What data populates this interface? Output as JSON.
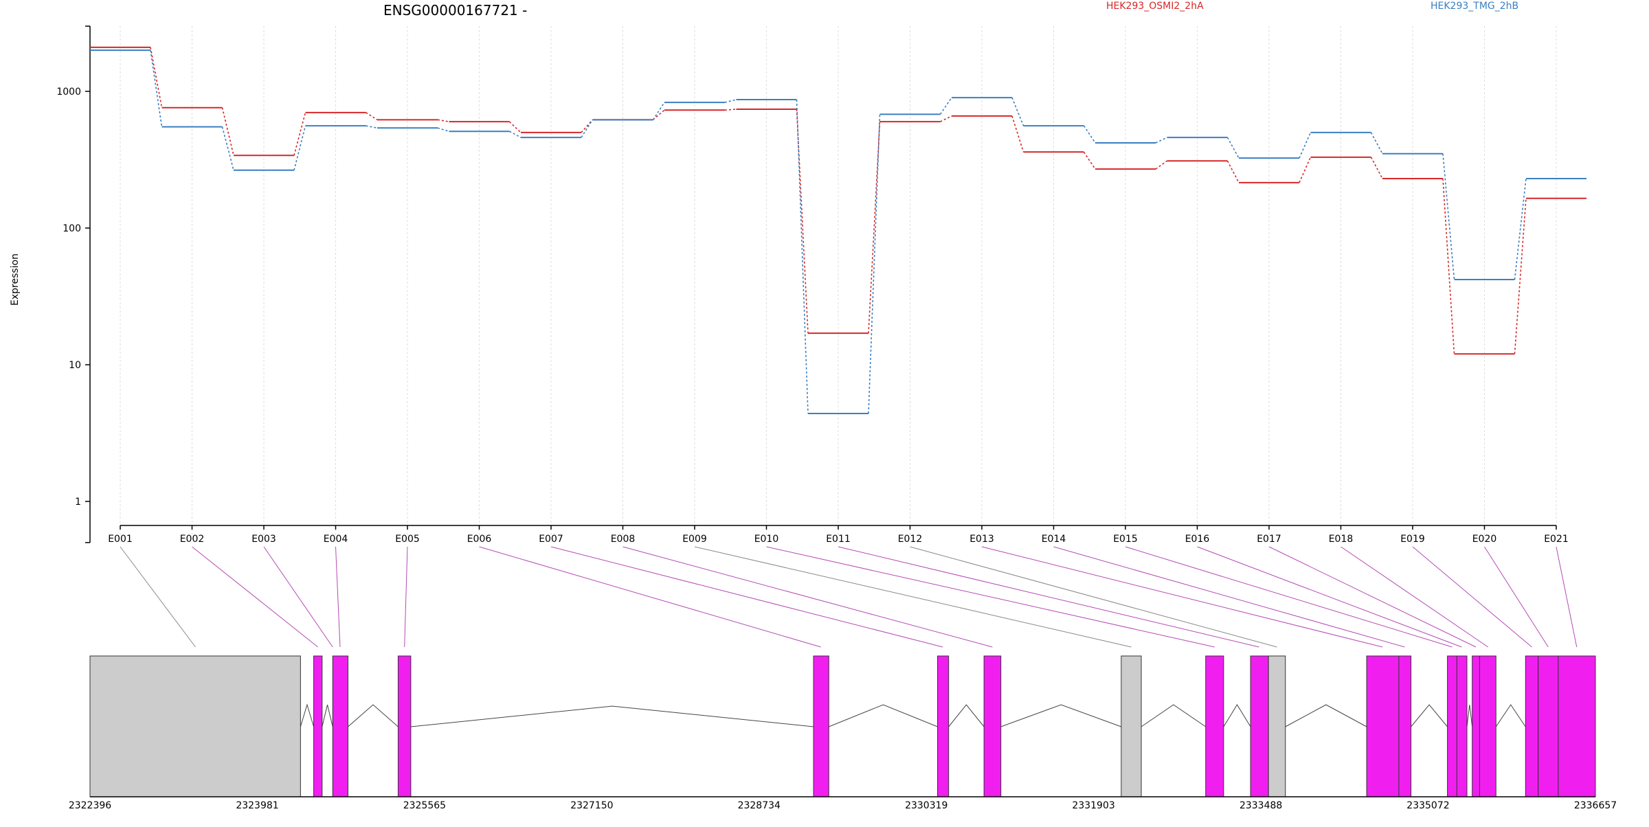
{
  "chart_data": {
    "type": "line",
    "title": "ENSG00000167721 -",
    "ylabel": "Expression",
    "y_scale": "log",
    "yticks": [
      1,
      10,
      100,
      1000
    ],
    "ylim": [
      0.5,
      3000
    ],
    "grid": true,
    "categories": [
      "E001",
      "E002",
      "E003",
      "E004",
      "E005",
      "E006",
      "E007",
      "E008",
      "E009",
      "E010",
      "E011",
      "E012",
      "E013",
      "E014",
      "E015",
      "E016",
      "E017",
      "E018",
      "E019",
      "E020",
      "E021"
    ],
    "series": [
      {
        "name": "HEK293_OSMI2_2hA",
        "color": "#d62728",
        "values": [
          2100,
          760,
          340,
          700,
          620,
          600,
          500,
          620,
          730,
          740,
          17,
          600,
          660,
          360,
          270,
          310,
          215,
          330,
          230,
          12,
          165
        ]
      },
      {
        "name": "HEK293_TMG_2hB",
        "color": "#3a7fc0",
        "values": [
          2000,
          550,
          265,
          560,
          540,
          510,
          460,
          620,
          830,
          870,
          4.4,
          680,
          900,
          560,
          420,
          460,
          325,
          500,
          350,
          42,
          230
        ]
      }
    ],
    "genome_axis": {
      "ticks": [
        2322396,
        2323981,
        2325565,
        2327150,
        2328734,
        2330319,
        2331903,
        2333488,
        2335072,
        2336657
      ],
      "range": [
        2322396,
        2336657
      ]
    },
    "exon_blocks": [
      {
        "start": 2322396,
        "end": 2324390,
        "state": "gray"
      },
      {
        "start": 2324515,
        "end": 2324595,
        "state": "magenta"
      },
      {
        "start": 2324695,
        "end": 2324840,
        "state": "magenta"
      },
      {
        "start": 2325315,
        "end": 2325435,
        "state": "magenta"
      },
      {
        "start": 2329250,
        "end": 2329395,
        "state": "magenta"
      },
      {
        "start": 2330425,
        "end": 2330530,
        "state": "magenta"
      },
      {
        "start": 2330865,
        "end": 2331025,
        "state": "magenta"
      },
      {
        "start": 2332165,
        "end": 2332355,
        "state": "gray"
      },
      {
        "start": 2332965,
        "end": 2333135,
        "state": "magenta"
      },
      {
        "start": 2333390,
        "end": 2333560,
        "state": "magenta"
      },
      {
        "start": 2333560,
        "end": 2333720,
        "state": "gray"
      },
      {
        "start": 2334490,
        "end": 2334795,
        "state": "magenta"
      },
      {
        "start": 2334795,
        "end": 2334910,
        "state": "magenta"
      },
      {
        "start": 2335255,
        "end": 2335345,
        "state": "magenta"
      },
      {
        "start": 2335345,
        "end": 2335440,
        "state": "magenta"
      },
      {
        "start": 2335490,
        "end": 2335560,
        "state": "magenta"
      },
      {
        "start": 2335560,
        "end": 2335715,
        "state": "magenta"
      },
      {
        "start": 2335995,
        "end": 2336115,
        "state": "magenta"
      },
      {
        "start": 2336115,
        "end": 2336305,
        "state": "magenta"
      },
      {
        "start": 2336305,
        "end": 2336657,
        "state": "magenta"
      }
    ],
    "exon_links": [
      {
        "exon": "E001",
        "pos": 2323395,
        "state": "gray"
      },
      {
        "exon": "E002",
        "pos": 2324555,
        "state": "magenta"
      },
      {
        "exon": "E003",
        "pos": 2324695,
        "state": "magenta"
      },
      {
        "exon": "E004",
        "pos": 2324765,
        "state": "magenta"
      },
      {
        "exon": "E005",
        "pos": 2325375,
        "state": "magenta"
      },
      {
        "exon": "E006",
        "pos": 2329320,
        "state": "magenta"
      },
      {
        "exon": "E007",
        "pos": 2330475,
        "state": "magenta"
      },
      {
        "exon": "E008",
        "pos": 2330945,
        "state": "magenta"
      },
      {
        "exon": "E009",
        "pos": 2332260,
        "state": "gray"
      },
      {
        "exon": "E010",
        "pos": 2333050,
        "state": "magenta"
      },
      {
        "exon": "E011",
        "pos": 2333470,
        "state": "magenta"
      },
      {
        "exon": "E012",
        "pos": 2333640,
        "state": "gray"
      },
      {
        "exon": "E013",
        "pos": 2334640,
        "state": "magenta"
      },
      {
        "exon": "E014",
        "pos": 2334850,
        "state": "magenta"
      },
      {
        "exon": "E015",
        "pos": 2335300,
        "state": "magenta"
      },
      {
        "exon": "E016",
        "pos": 2335390,
        "state": "magenta"
      },
      {
        "exon": "E017",
        "pos": 2335525,
        "state": "magenta"
      },
      {
        "exon": "E018",
        "pos": 2335640,
        "state": "magenta"
      },
      {
        "exon": "E019",
        "pos": 2336055,
        "state": "magenta"
      },
      {
        "exon": "E020",
        "pos": 2336210,
        "state": "magenta"
      },
      {
        "exon": "E021",
        "pos": 2336480,
        "state": "magenta"
      }
    ],
    "colors": {
      "magenta": "#f01ff0",
      "gray": "#cccccc",
      "link_magenta": "#b44ab4",
      "link_gray": "#888888"
    }
  }
}
